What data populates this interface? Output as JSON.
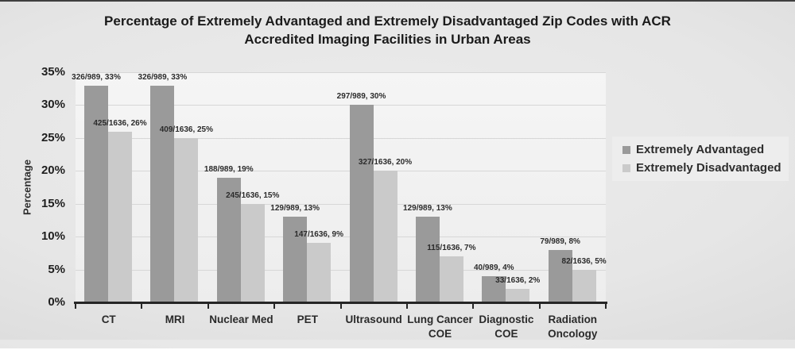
{
  "figure": {
    "title_line1": "Percentage of Extremely Advantaged and Extremely Disadvantaged Zip Codes with ACR",
    "title_line2": "Accredited Imaging Facilities in Urban Areas"
  },
  "chart_data": {
    "type": "bar",
    "title": "Percentage of Extremely Advantaged and Extremely Disadvantaged Zip Codes with ACR Accredited Imaging Facilities in Urban Areas",
    "xlabel": "",
    "ylabel": "Percentage",
    "ylim": [
      0,
      35
    ],
    "ytick_step": 5,
    "ytick_labels": [
      "0%",
      "5%",
      "10%",
      "15%",
      "20%",
      "25%",
      "30%",
      "35%"
    ],
    "grid": true,
    "legend_position": "right",
    "categories": [
      "CT",
      "MRI",
      "Nuclear Med",
      "PET",
      "Ultrasound",
      "Lung Cancer\nCOE",
      "Diagnostic\nCOE",
      "Radiation\nOncology"
    ],
    "series": [
      {
        "name": "Extremely Advantaged",
        "color": "#9a9a9a",
        "values": [
          33,
          33,
          19,
          13,
          30,
          13,
          4,
          8
        ],
        "data_labels": [
          "326/989, 33%",
          "326/989, 33%",
          "188/989, 19%",
          "129/989, 13%",
          "297/989, 30%",
          "129/989, 13%",
          "40/989, 4%",
          "79/989, 8%"
        ]
      },
      {
        "name": "Extremely Disadvantaged",
        "color": "#cacaca",
        "values": [
          26,
          25,
          15,
          9,
          20,
          7,
          2,
          5
        ],
        "data_labels": [
          "425/1636, 26%",
          "409/1636, 25%",
          "245/1636, 15%",
          "147/1636, 9%",
          "327/1636, 20%",
          "115/1636, 7%",
          "33/1636, 2%",
          "82/1636, 5%"
        ]
      }
    ],
    "colors": {
      "axis": "#262626",
      "gridline": "#d7d7d7",
      "plot_background": "#f1f1f1",
      "label_text": "#2b2b2b"
    }
  }
}
